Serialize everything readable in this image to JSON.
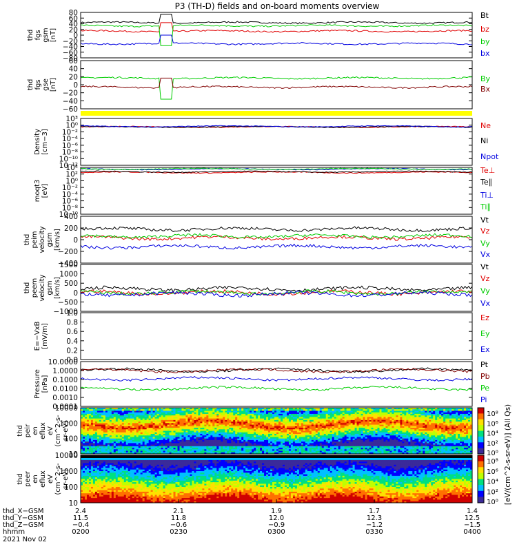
{
  "title": "P3 (TH-D) fields and on-board moments overview",
  "colors": {
    "black": "#000000",
    "red": "#e00000",
    "green": "#00cc00",
    "blue": "#0000e0",
    "darkred": "#800000",
    "yellow": "#ffff00",
    "brown": "#7a2a00"
  },
  "chart_data": [
    {
      "type": "line",
      "panel": "fgs-gsm",
      "ylabel": [
        "thd",
        "fgs",
        "gsm",
        "[nT]"
      ],
      "ylim": [
        -80,
        80
      ],
      "yticks": [
        "80",
        "60",
        "40",
        "20",
        "0",
        "−20",
        "−40",
        "−60",
        "−80"
      ],
      "series": [
        {
          "name": "Bt",
          "color": "black",
          "level": 44
        },
        {
          "name": "bz",
          "color": "red",
          "level": 14
        },
        {
          "name": "by",
          "color": "green",
          "level": 33
        },
        {
          "name": "bx",
          "color": "blue",
          "level": -30
        }
      ]
    },
    {
      "type": "line",
      "panel": "fgs-gse",
      "ylabel": [
        "thd",
        "fgs",
        "gse",
        "[nT]"
      ],
      "ylim": [
        -80,
        80
      ],
      "yticks": [
        "60",
        "40",
        "20",
        "0",
        "−20",
        "−40",
        "−60"
      ],
      "series": [
        {
          "name": "By",
          "color": "green",
          "level": 22
        },
        {
          "name": "Bx",
          "color": "darkred",
          "level": -8
        }
      ]
    },
    {
      "type": "line",
      "panel": "density",
      "ylabel": [
        "Density",
        "[cm−3]"
      ],
      "ylim": [
        1e-12,
        1000.0
      ],
      "log": true,
      "yticks": [
        "10³",
        "10⁰",
        "10⁻²",
        "10⁻⁴",
        "10⁻⁶",
        "10⁻⁸",
        "10⁻¹⁰",
        "10⁻¹²"
      ],
      "series": [
        {
          "name": "Ne",
          "color": "red",
          "level": 2
        },
        {
          "name": "Ni",
          "color": "black",
          "level": 2
        },
        {
          "name": "Npot",
          "color": "blue",
          "level": 3
        }
      ]
    },
    {
      "type": "line",
      "panel": "temperature",
      "ylabel": [
        "moqt3",
        "[eV]"
      ],
      "ylim": [
        1e-10,
        10000.0
      ],
      "log": true,
      "yticks": [
        "10⁴",
        "10²",
        "10⁰",
        "10⁻²",
        "10⁻⁴",
        "10⁻⁶",
        "10⁻⁸",
        "10⁻¹⁰"
      ],
      "series": [
        {
          "name": "Te⊥",
          "color": "red",
          "level": 300
        },
        {
          "name": "Te∥",
          "color": "black",
          "level": 500
        },
        {
          "name": "Ti⊥",
          "color": "blue",
          "level": 3000
        },
        {
          "name": "Ti∥",
          "color": "green",
          "level": 3500
        }
      ]
    },
    {
      "type": "line",
      "panel": "ion-velocity",
      "ylabel": [
        "thd",
        "peim",
        "velocity",
        "gsm",
        "[km/s]"
      ],
      "ylim": [
        -400,
        400
      ],
      "yticks": [
        "400",
        "200",
        "0",
        "−200",
        "−400"
      ],
      "series": [
        {
          "name": "Vt",
          "color": "black",
          "level": 180
        },
        {
          "name": "Vz",
          "color": "red",
          "level": 30
        },
        {
          "name": "Vy",
          "color": "green",
          "level": 60
        },
        {
          "name": "Vx",
          "color": "blue",
          "level": -120
        }
      ]
    },
    {
      "type": "line",
      "panel": "electron-velocity",
      "ylabel": [
        "thd",
        "peem",
        "velocity",
        "gsm",
        "[km/s]"
      ],
      "ylim": [
        -1000,
        1500
      ],
      "yticks": [
        "1500",
        "1000",
        "500",
        "0",
        "−500",
        "−1000"
      ],
      "series": [
        {
          "name": "Vt",
          "color": "black",
          "level": 200
        },
        {
          "name": "Vz",
          "color": "red",
          "level": 0
        },
        {
          "name": "Vy",
          "color": "green",
          "level": 0
        },
        {
          "name": "Vx",
          "color": "blue",
          "level": -80
        }
      ]
    },
    {
      "type": "line",
      "panel": "efield",
      "ylabel": [
        "E=−VxB",
        "[mV/m]"
      ],
      "ylim": [
        0,
        1
      ],
      "yticks": [
        "1.0",
        "0.8",
        "0.6",
        "0.4",
        "0.2",
        "0.0"
      ],
      "series": [
        {
          "name": "Ez",
          "color": "red"
        },
        {
          "name": "Ey",
          "color": "green"
        },
        {
          "name": "Ex",
          "color": "blue"
        }
      ]
    },
    {
      "type": "line",
      "panel": "pressure",
      "ylabel": [
        "Pressure",
        "[nPa]"
      ],
      "ylim": [
        0.0001,
        10
      ],
      "log": true,
      "yticks": [
        "10.0000",
        "1.0000",
        "0.1000",
        "0.0100",
        "0.0010",
        "0.0001"
      ],
      "series": [
        {
          "name": "Pt",
          "color": "black",
          "level": 1.1
        },
        {
          "name": "Pb",
          "color": "darkred",
          "level": 1.0
        },
        {
          "name": "Pe",
          "color": "green",
          "level": 0.01
        },
        {
          "name": "Pi",
          "color": "blue",
          "level": 0.12
        }
      ]
    },
    {
      "type": "heatmap",
      "panel": "ion-spectrogram",
      "ylabel": [
        "thd",
        "peir",
        "en",
        "eflux",
        "eV",
        "(cm^2-s-",
        "sr-eV)"
      ],
      "ylim": [
        5,
        30000
      ],
      "log": true,
      "yticks": [
        "10000",
        "1000",
        "100",
        "10"
      ]
    },
    {
      "type": "heatmap",
      "panel": "electron-spectrogram",
      "ylabel": [
        "thd",
        "peer",
        "en",
        "eflux",
        "eV",
        "(cm^2-s-",
        "sr-eV)"
      ],
      "ylim": [
        5,
        30000
      ],
      "log": true,
      "yticks": [
        "10000",
        "1000",
        "100",
        "10"
      ]
    }
  ],
  "colorbar": {
    "label": "[eV/(cm^2-s-sr-eV)] (All Qs)",
    "ticks": [
      "10⁸",
      "10⁶",
      "10⁴",
      "10²",
      "10⁰",
      "10⁸",
      "10⁶",
      "10⁴",
      "10²",
      "10⁰"
    ]
  },
  "x_axis": {
    "row_labels": [
      "thd_X−GSM",
      "thd_Y−GSM",
      "thd_Z−GSM",
      "hhmm",
      "2021 Nov 02"
    ],
    "ticks": [
      {
        "x": "2.4",
        "y": "11.5",
        "z": "−0.4",
        "t": "0200"
      },
      {
        "x": "2.1",
        "y": "11.8",
        "z": "−0.6",
        "t": "0230"
      },
      {
        "x": "1.9",
        "y": "12.0",
        "z": "−0.9",
        "t": "0300"
      },
      {
        "x": "1.7",
        "y": "12.3",
        "z": "−1.2",
        "t": "0330"
      },
      {
        "x": "1.4",
        "y": "12.5",
        "z": "−1.5",
        "t": "0400"
      }
    ]
  }
}
